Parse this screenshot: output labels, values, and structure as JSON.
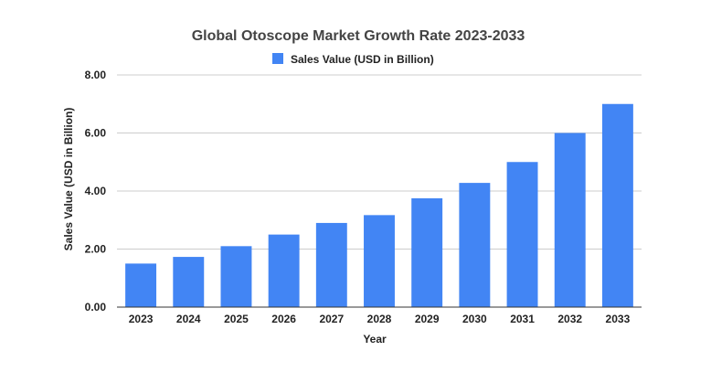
{
  "chart_data": {
    "type": "bar",
    "title": "Global Otoscope Market Growth Rate 2023-2033",
    "xlabel": "Year",
    "ylabel": "Sales Value (USD in Billion)",
    "categories": [
      "2023",
      "2024",
      "2025",
      "2026",
      "2027",
      "2028",
      "2029",
      "2030",
      "2031",
      "2032",
      "2033"
    ],
    "series": [
      {
        "name": "Sales Value (USD in Billion)",
        "values": [
          1.5,
          1.73,
          2.1,
          2.5,
          2.9,
          3.17,
          3.75,
          4.28,
          5.0,
          6.0,
          7.0
        ],
        "color": "#4285f4"
      }
    ],
    "ylim": [
      0,
      8
    ],
    "yticks": [
      "0.00",
      "2.00",
      "4.00",
      "6.00",
      "8.00"
    ],
    "grid": true,
    "legend_position": "top-center"
  }
}
